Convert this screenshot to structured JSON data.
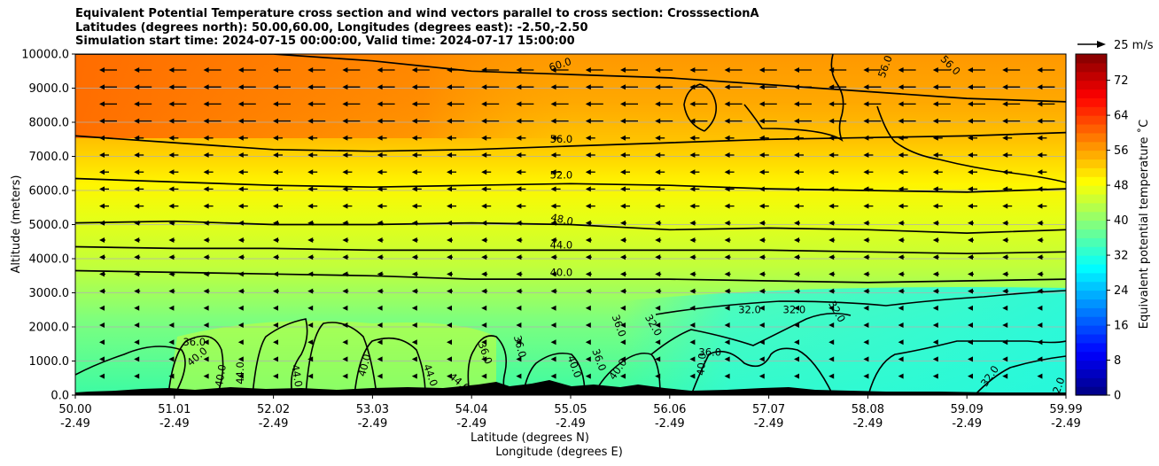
{
  "chart_data": {
    "type": "heatmap",
    "title_lines": [
      "Equivalent Potential Temperature cross section and wind vectors parallel to cross section: CrosssectionA",
      "Latitudes (degrees north): 50.00,60.00, Longitudes (degrees east): -2.50,-2.50",
      "Simulation start time: 2024-07-15 00:00:00, Valid time: 2024-07-17 15:00:00"
    ],
    "xlabel_lines": [
      "Latitude (degrees N)",
      "Longitude (degrees E)"
    ],
    "ylabel": "Altitude (meters)",
    "x_ticks": [
      {
        "lat": "50.00",
        "lon": "-2.49"
      },
      {
        "lat": "51.01",
        "lon": "-2.49"
      },
      {
        "lat": "52.02",
        "lon": "-2.49"
      },
      {
        "lat": "53.03",
        "lon": "-2.49"
      },
      {
        "lat": "54.04",
        "lon": "-2.49"
      },
      {
        "lat": "55.05",
        "lon": "-2.49"
      },
      {
        "lat": "56.06",
        "lon": "-2.49"
      },
      {
        "lat": "57.07",
        "lon": "-2.49"
      },
      {
        "lat": "58.08",
        "lon": "-2.49"
      },
      {
        "lat": "59.09",
        "lon": "-2.49"
      },
      {
        "lat": "59.99",
        "lon": "-2.49"
      }
    ],
    "x_range": [
      50.0,
      59.99
    ],
    "y_ticks": [
      "0.0",
      "1000.0",
      "2000.0",
      "3000.0",
      "4000.0",
      "5000.0",
      "6000.0",
      "7000.0",
      "8000.0",
      "9000.0",
      "10000.0"
    ],
    "y_range": [
      0,
      10000
    ],
    "colorbar": {
      "label": "Equivalent potential temperature ˚C",
      "ticks": [
        "0",
        "8",
        "16",
        "24",
        "32",
        "40",
        "48",
        "56",
        "64",
        "72"
      ],
      "range": [
        0,
        78
      ]
    },
    "quiver_key": "25 m/s",
    "contour_levels_labeled": [
      "32.0",
      "36.0",
      "40.0",
      "44.0",
      "48.0",
      "52.0",
      "56.0",
      "60.0"
    ],
    "contour_levels": [
      {
        "level": 60,
        "label": "60.0",
        "heights_m": [
          10000,
          10000,
          10000,
          9800,
          9500,
          9400,
          9300,
          9100,
          8900,
          8700,
          8600
        ]
      },
      {
        "level": 56,
        "label": "56.0",
        "heights_m": [
          7600,
          7400,
          7200,
          7150,
          7200,
          7300,
          7400,
          7500,
          7550,
          7600,
          7700
        ]
      },
      {
        "level": 52,
        "label": "52.0",
        "heights_m": [
          6350,
          6250,
          6150,
          6100,
          6150,
          6200,
          6150,
          6050,
          6000,
          5950,
          6050
        ]
      },
      {
        "level": 48,
        "label": "48.0",
        "heights_m": [
          5050,
          5100,
          5000,
          5000,
          5050,
          5000,
          4850,
          4900,
          4850,
          4750,
          4850
        ]
      },
      {
        "level": 44,
        "label": "44.0",
        "heights_m": [
          4350,
          4300,
          4300,
          4250,
          4250,
          4250,
          4250,
          4250,
          4200,
          4150,
          4200
        ]
      },
      {
        "level": 40,
        "label": "40.0",
        "heights_m": [
          3650,
          3600,
          3550,
          3500,
          3400,
          3400,
          3400,
          3350,
          3300,
          3350,
          3400
        ]
      }
    ],
    "inline_labels": [
      {
        "text": "60.0",
        "lat": 54.9,
        "alt": 9600,
        "rot": -18
      },
      {
        "text": "56.0",
        "lat": 58.2,
        "alt": 9600,
        "rot": -70
      },
      {
        "text": "56.0",
        "lat": 58.8,
        "alt": 9600,
        "rot": 45
      },
      {
        "text": "56.0",
        "lat": 54.9,
        "alt": 7400,
        "rot": 0
      },
      {
        "text": "52.0",
        "lat": 54.9,
        "alt": 6350,
        "rot": 0
      },
      {
        "text": "48.0",
        "lat": 54.9,
        "alt": 5050,
        "rot": 12
      },
      {
        "text": "44.0",
        "lat": 54.9,
        "alt": 4300,
        "rot": 0
      },
      {
        "text": "40.0",
        "lat": 54.9,
        "alt": 3500,
        "rot": 0
      },
      {
        "text": "32.0",
        "lat": 56.8,
        "alt": 2400,
        "rot": 0
      },
      {
        "text": "32.0",
        "lat": 57.25,
        "alt": 2400,
        "rot": 0
      },
      {
        "text": "32.0",
        "lat": 57.65,
        "alt": 2400,
        "rot": 60
      },
      {
        "text": "32.0",
        "lat": 55.8,
        "alt": 2000,
        "rot": 60
      },
      {
        "text": "36.0",
        "lat": 56.4,
        "alt": 1150,
        "rot": 0
      },
      {
        "text": "36.0",
        "lat": 55.45,
        "alt": 2000,
        "rot": 70
      },
      {
        "text": "36.0",
        "lat": 51.2,
        "alt": 1450,
        "rot": 0
      },
      {
        "text": "40.0",
        "lat": 51.25,
        "alt": 1050,
        "rot": -40
      },
      {
        "text": "40.0",
        "lat": 51.5,
        "alt": 550,
        "rot": -80
      },
      {
        "text": "44.0",
        "lat": 51.7,
        "alt": 650,
        "rot": -90
      },
      {
        "text": "44.0",
        "lat": 52.2,
        "alt": 550,
        "rot": 80
      },
      {
        "text": "40.0",
        "lat": 52.95,
        "alt": 850,
        "rot": -75
      },
      {
        "text": "44.0",
        "lat": 53.55,
        "alt": 550,
        "rot": 70
      },
      {
        "text": "44.0",
        "lat": 53.85,
        "alt": 300,
        "rot": 40
      },
      {
        "text": "36.0",
        "lat": 54.1,
        "alt": 1200,
        "rot": 70
      },
      {
        "text": "36.0",
        "lat": 54.45,
        "alt": 1400,
        "rot": 75
      },
      {
        "text": "40.0",
        "lat": 55.0,
        "alt": 800,
        "rot": 70
      },
      {
        "text": "36.0",
        "lat": 55.25,
        "alt": 1000,
        "rot": 70
      },
      {
        "text": "40.0",
        "lat": 55.5,
        "alt": 700,
        "rot": -55
      },
      {
        "text": "40.0",
        "lat": 56.35,
        "alt": 900,
        "rot": -85
      },
      {
        "text": "32.0",
        "lat": 59.25,
        "alt": 500,
        "rot": -55
      },
      {
        "text": "2.0",
        "lat": 59.95,
        "alt": 250,
        "rot": -70
      }
    ],
    "wind_direction": "toward decreasing latitude (southward)"
  }
}
